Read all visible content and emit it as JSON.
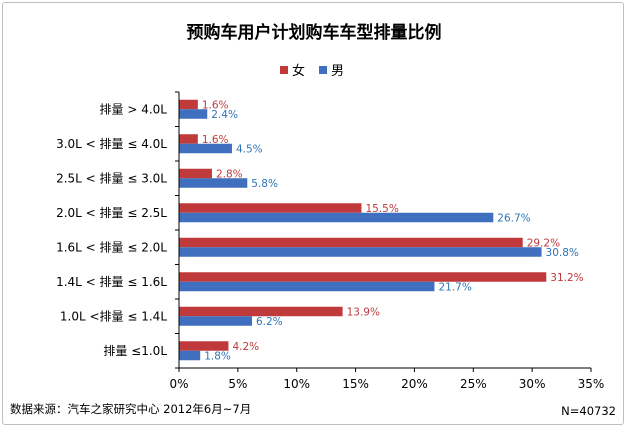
{
  "chart_data": {
    "type": "bar",
    "orientation": "horizontal",
    "title": "预购车用户计划购车车型排量比例",
    "categories": [
      "排量 > 4.0L",
      "3.0L < 排量 ≤ 4.0L",
      "2.5L < 排量 ≤ 3.0L",
      "2.0L < 排量 ≤ 2.5L",
      "1.6L < 排量 ≤ 2.0L",
      "1.4L < 排量 ≤ 1.6L",
      "1.0L <排量 ≤ 1.4L",
      "排量 ≤1.0L"
    ],
    "series": [
      {
        "name": "女",
        "color": "#c0393b",
        "values": [
          1.6,
          1.6,
          2.8,
          15.5,
          29.2,
          31.2,
          13.9,
          4.2
        ],
        "labels": [
          "1.6%",
          "1.6%",
          "2.8%",
          "15.5%",
          "29.2%",
          "31.2%",
          "13.9%",
          "4.2%"
        ]
      },
      {
        "name": "男",
        "color": "#3f6fbe",
        "values": [
          2.4,
          4.5,
          5.8,
          26.7,
          30.8,
          21.7,
          6.2,
          1.8
        ],
        "labels": [
          "2.4%",
          "4.5%",
          "5.8%",
          "26.7%",
          "30.8%",
          "21.7%",
          "6.2%",
          "1.8%"
        ]
      }
    ],
    "xlim": [
      0,
      35
    ],
    "xticks": [
      "0%",
      "5%",
      "10%",
      "15%",
      "20%",
      "25%",
      "30%",
      "35%"
    ],
    "label_colors": {
      "女": "#c0393b",
      "男": "#2e75b6"
    },
    "legend_position": "top"
  },
  "footer": {
    "source": "数据来源：汽车之家研究中心  2012年6月~7月",
    "sample": "N=40732"
  }
}
